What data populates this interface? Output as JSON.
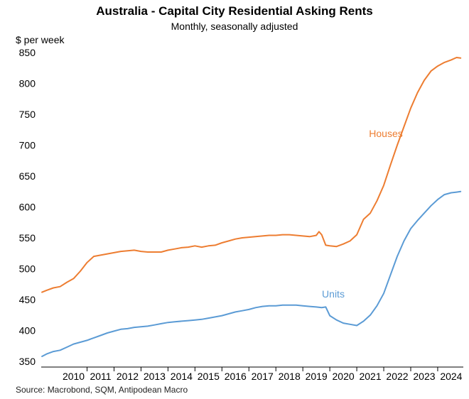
{
  "chart_data": {
    "type": "line",
    "title": "Australia - Capital City Residential Asking Rents",
    "subtitle": "Monthly, seasonally adjusted",
    "ylabel": "$ per week",
    "source": "Source: Macrobond, SQM, Antipodean Macro",
    "ylim": [
      350,
      850
    ],
    "yticks": [
      350,
      400,
      450,
      500,
      550,
      600,
      650,
      700,
      750,
      800,
      850
    ],
    "xlim": [
      2009.3,
      2024.95
    ],
    "xticks": [
      "2010",
      "2011",
      "2012",
      "2013",
      "2014",
      "2015",
      "2016",
      "2017",
      "2018",
      "2019",
      "2020",
      "2021",
      "2022",
      "2023",
      "2024"
    ],
    "grid": false,
    "series": [
      {
        "name": "Houses",
        "color": "#ed7d31",
        "x": [
          2009.33,
          2009.5,
          2009.75,
          2010.0,
          2010.25,
          2010.5,
          2010.75,
          2011.0,
          2011.25,
          2011.5,
          2011.75,
          2012.0,
          2012.25,
          2012.5,
          2012.75,
          2013.0,
          2013.25,
          2013.5,
          2013.75,
          2014.0,
          2014.25,
          2014.5,
          2014.75,
          2015.0,
          2015.25,
          2015.5,
          2015.75,
          2016.0,
          2016.25,
          2016.5,
          2016.75,
          2017.0,
          2017.25,
          2017.5,
          2017.75,
          2018.0,
          2018.25,
          2018.5,
          2018.75,
          2019.0,
          2019.25,
          2019.5,
          2019.6,
          2019.7,
          2019.85,
          2020.0,
          2020.25,
          2020.5,
          2020.75,
          2021.0,
          2021.25,
          2021.5,
          2021.75,
          2022.0,
          2022.25,
          2022.5,
          2022.75,
          2023.0,
          2023.25,
          2023.5,
          2023.75,
          2024.0,
          2024.25,
          2024.5,
          2024.7,
          2024.85
        ],
        "values": [
          462,
          465,
          469,
          471,
          478,
          484,
          496,
          510,
          520,
          522,
          524,
          526,
          528,
          529,
          530,
          528,
          527,
          527,
          527,
          530,
          532,
          534,
          535,
          537,
          535,
          537,
          538,
          542,
          545,
          548,
          550,
          551,
          552,
          553,
          554,
          554,
          555,
          555,
          554,
          553,
          552,
          554,
          560,
          555,
          538,
          537,
          536,
          540,
          545,
          555,
          580,
          590,
          610,
          635,
          668,
          700,
          730,
          760,
          785,
          805,
          820,
          828,
          834,
          838,
          842,
          841
        ]
      },
      {
        "name": "Units",
        "color": "#5b9bd5",
        "x": [
          2009.33,
          2009.5,
          2009.75,
          2010.0,
          2010.25,
          2010.5,
          2010.75,
          2011.0,
          2011.25,
          2011.5,
          2011.75,
          2012.0,
          2012.25,
          2012.5,
          2012.75,
          2013.0,
          2013.25,
          2013.5,
          2013.75,
          2014.0,
          2014.25,
          2014.5,
          2014.75,
          2015.0,
          2015.25,
          2015.5,
          2015.75,
          2016.0,
          2016.25,
          2016.5,
          2016.75,
          2017.0,
          2017.25,
          2017.5,
          2017.75,
          2018.0,
          2018.25,
          2018.5,
          2018.75,
          2019.0,
          2019.25,
          2019.5,
          2019.7,
          2019.85,
          2020.0,
          2020.25,
          2020.5,
          2020.75,
          2021.0,
          2021.25,
          2021.5,
          2021.75,
          2022.0,
          2022.25,
          2022.5,
          2022.75,
          2023.0,
          2023.25,
          2023.5,
          2023.75,
          2024.0,
          2024.25,
          2024.5,
          2024.7,
          2024.85
        ],
        "values": [
          358,
          362,
          366,
          368,
          373,
          378,
          381,
          384,
          388,
          392,
          396,
          399,
          402,
          403,
          405,
          406,
          407,
          409,
          411,
          413,
          414,
          415,
          416,
          417,
          418,
          420,
          422,
          424,
          427,
          430,
          432,
          434,
          437,
          439,
          440,
          440,
          441,
          441,
          441,
          440,
          439,
          438,
          437,
          438,
          424,
          417,
          412,
          410,
          408,
          415,
          425,
          440,
          460,
          490,
          520,
          545,
          565,
          578,
          590,
          602,
          612,
          620,
          623,
          624,
          625
        ]
      }
    ],
    "annotations": [
      {
        "text": "Houses",
        "series": "Houses"
      },
      {
        "text": "Units",
        "series": "Units"
      }
    ]
  }
}
